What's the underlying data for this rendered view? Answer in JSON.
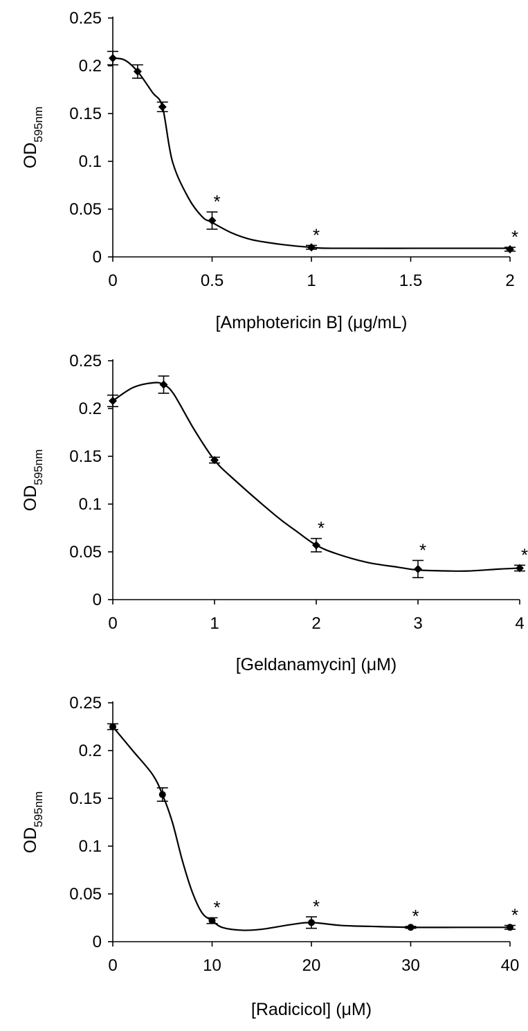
{
  "chart_data": [
    {
      "type": "line",
      "xlabel": "[Amphotericin B] (μg/mL)",
      "ylabel": "OD",
      "ylabel_subscript": "595nm",
      "xlim": [
        0,
        2
      ],
      "ylim": [
        0,
        0.25
      ],
      "x_ticks": [
        "0",
        "0.5",
        "1",
        "1.5",
        "2"
      ],
      "y_ticks": [
        "0",
        "0.05",
        "0.1",
        "0.15",
        "0.2",
        "0.25"
      ],
      "grid": false,
      "marker": "diamond",
      "series": [
        {
          "x": [
            0,
            0.125,
            0.25,
            0.5,
            1,
            2
          ],
          "y": [
            0.208,
            0.194,
            0.157,
            0.038,
            0.01,
            0.008
          ],
          "error": [
            0.007,
            0.007,
            0.005,
            0.009,
            0.002,
            0.002
          ],
          "significant": [
            false,
            false,
            false,
            true,
            true,
            true
          ],
          "curve": [
            [
              0,
              0.208
            ],
            [
              0.06,
              0.206
            ],
            [
              0.125,
              0.194
            ],
            [
              0.2,
              0.172
            ],
            [
              0.25,
              0.157
            ],
            [
              0.3,
              0.1
            ],
            [
              0.38,
              0.062
            ],
            [
              0.45,
              0.042
            ],
            [
              0.5,
              0.036
            ],
            [
              0.6,
              0.025
            ],
            [
              0.7,
              0.018
            ],
            [
              0.85,
              0.013
            ],
            [
              1,
              0.01
            ],
            [
              1.1,
              0.009
            ],
            [
              1.5,
              0.009
            ],
            [
              2,
              0.009
            ]
          ]
        }
      ],
      "annotation_symbol": "*"
    },
    {
      "type": "line",
      "xlabel": "[Geldanamycin] (μM)",
      "ylabel": "OD",
      "ylabel_subscript": "595nm",
      "xlim": [
        0,
        4
      ],
      "ylim": [
        0,
        0.25
      ],
      "x_ticks": [
        "0",
        "1",
        "2",
        "3",
        "4"
      ],
      "y_ticks": [
        "0",
        "0.05",
        "0.1",
        "0.15",
        "0.2",
        "0.25"
      ],
      "grid": false,
      "marker": "diamond",
      "series": [
        {
          "x": [
            0,
            0.5,
            1,
            2,
            3,
            4
          ],
          "y": [
            0.208,
            0.225,
            0.146,
            0.057,
            0.032,
            0.033
          ],
          "error": [
            0.006,
            0.009,
            0.003,
            0.007,
            0.009,
            0.003
          ],
          "significant": [
            false,
            false,
            false,
            true,
            true,
            true
          ],
          "curve": [
            [
              0,
              0.208
            ],
            [
              0.2,
              0.222
            ],
            [
              0.4,
              0.227
            ],
            [
              0.5,
              0.225
            ],
            [
              0.6,
              0.215
            ],
            [
              0.8,
              0.178
            ],
            [
              1,
              0.146
            ],
            [
              1.2,
              0.125
            ],
            [
              1.6,
              0.088
            ],
            [
              1.8,
              0.072
            ],
            [
              2,
              0.057
            ],
            [
              2.2,
              0.048
            ],
            [
              2.5,
              0.039
            ],
            [
              2.8,
              0.034
            ],
            [
              3,
              0.031
            ],
            [
              3.3,
              0.03
            ],
            [
              3.5,
              0.03
            ],
            [
              3.8,
              0.032
            ],
            [
              4,
              0.033
            ]
          ]
        }
      ],
      "annotation_symbol": "*"
    },
    {
      "type": "line",
      "xlabel": "[Radicicol] (μM)",
      "ylabel": "OD",
      "ylabel_subscript": "595nm",
      "xlim": [
        0,
        40
      ],
      "ylim": [
        0,
        0.25
      ],
      "x_ticks": [
        "0",
        "10",
        "20",
        "30",
        "40"
      ],
      "y_ticks": [
        "0",
        "0.05",
        "0.1",
        "0.15",
        "0.2",
        "0.25"
      ],
      "grid": false,
      "marker": "circle",
      "series": [
        {
          "x": [
            0,
            5,
            10,
            20,
            30,
            40
          ],
          "y": [
            0.225,
            0.154,
            0.022,
            0.02,
            0.015,
            0.015
          ],
          "error": [
            0.003,
            0.007,
            0.003,
            0.006,
            0.001,
            0.002
          ],
          "significant": [
            false,
            false,
            true,
            true,
            true,
            true
          ],
          "curve": [
            [
              0,
              0.225
            ],
            [
              2,
              0.2
            ],
            [
              4,
              0.175
            ],
            [
              5,
              0.154
            ],
            [
              6,
              0.125
            ],
            [
              7,
              0.085
            ],
            [
              8,
              0.052
            ],
            [
              9,
              0.03
            ],
            [
              10,
              0.022
            ],
            [
              11,
              0.015
            ],
            [
              13,
              0.012
            ],
            [
              15,
              0.013
            ],
            [
              18,
              0.018
            ],
            [
              20,
              0.02
            ],
            [
              23,
              0.017
            ],
            [
              26,
              0.016
            ],
            [
              30,
              0.015
            ],
            [
              35,
              0.015
            ],
            [
              40,
              0.015
            ]
          ]
        }
      ],
      "annotation_symbol": "*"
    }
  ]
}
